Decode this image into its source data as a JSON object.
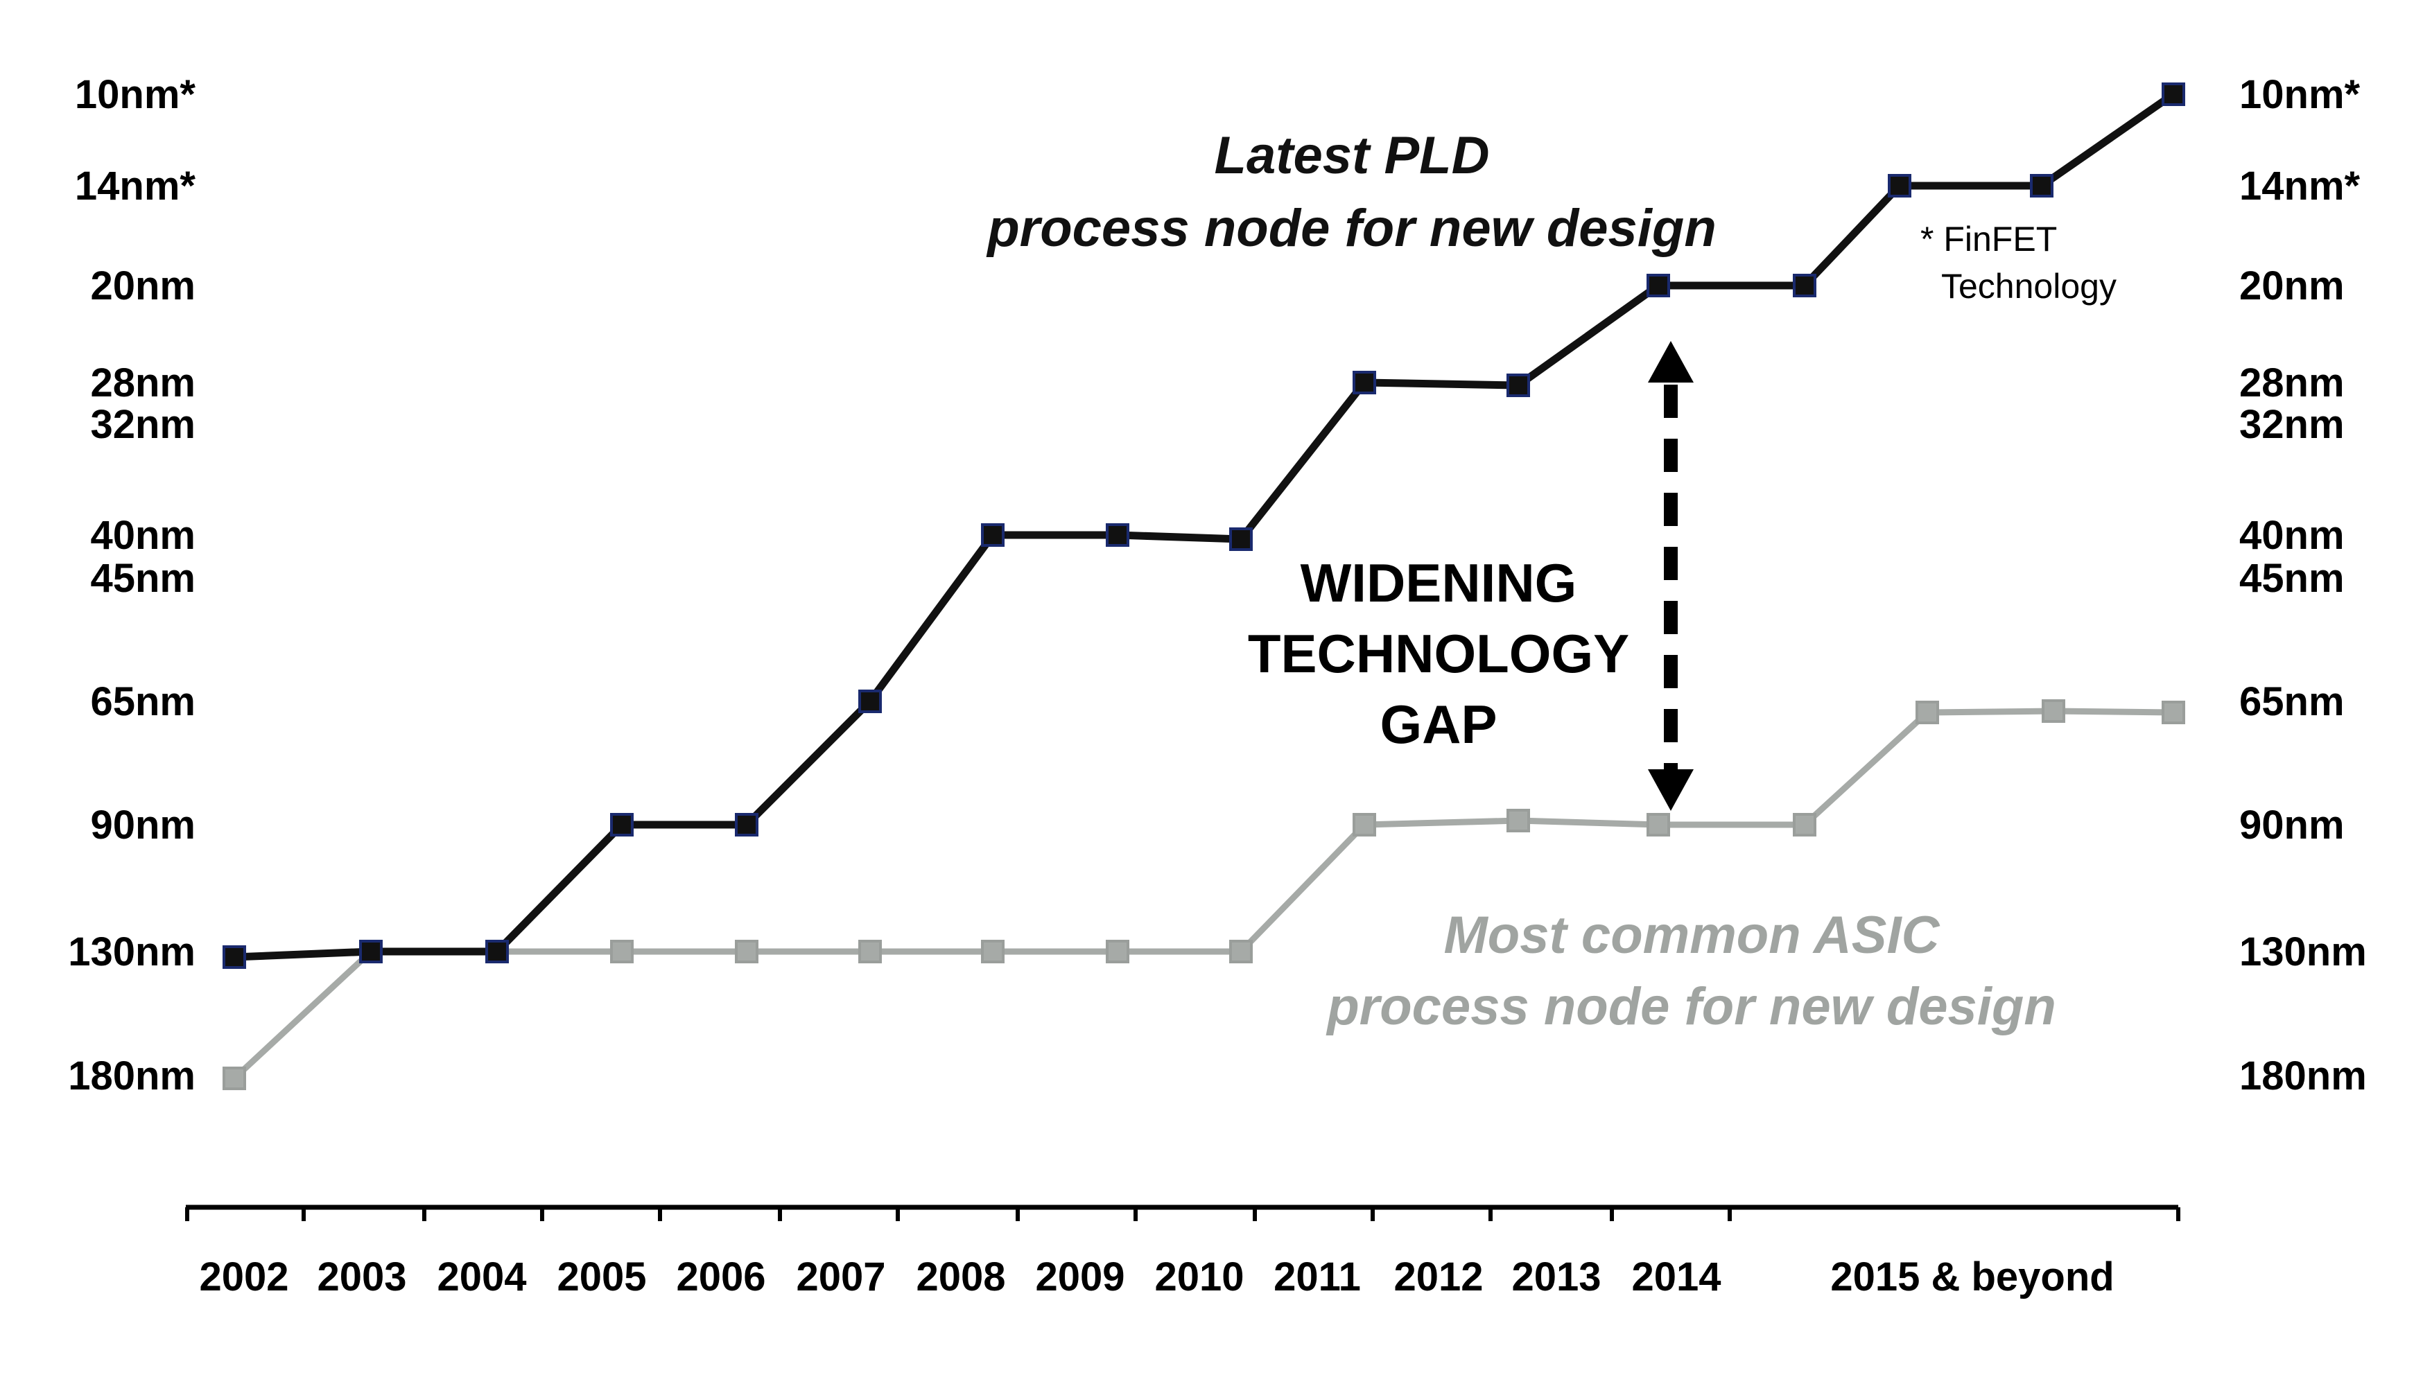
{
  "chart_data": {
    "type": "line",
    "title": "",
    "xlabel": "",
    "ylabel": "",
    "x_labels": [
      "2002",
      "2003",
      "2004",
      "2005",
      "2006",
      "2007",
      "2008",
      "2009",
      "2010",
      "2011",
      "2012",
      "2013",
      "2014",
      "2015 & beyond"
    ],
    "y_ticks": [
      "10nm*",
      "14nm*",
      "20nm",
      "28nm",
      "32nm",
      "40nm",
      "45nm",
      "65nm",
      "90nm",
      "130nm",
      "180nm"
    ],
    "series": [
      {
        "name": "Latest PLD process node for new design",
        "name_lines": [
          "Latest PLD",
          "process node for new design"
        ],
        "color": "#111111",
        "marker_edge": "#1a2a6e",
        "points": [
          {
            "x": "2002",
            "y": "130nm"
          },
          {
            "x": "2003",
            "y": "130nm"
          },
          {
            "x": "2004",
            "y": "130nm"
          },
          {
            "x": "2005",
            "y": "90nm"
          },
          {
            "x": "2006",
            "y": "90nm"
          },
          {
            "x": "2007",
            "y": "65nm"
          },
          {
            "x": "2008",
            "y": "40nm"
          },
          {
            "x": "2009",
            "y": "40nm"
          },
          {
            "x": "2010",
            "y": "40nm"
          },
          {
            "x": "2011",
            "y": "28nm"
          },
          {
            "x": "2012",
            "y": "28nm"
          },
          {
            "x": "2013",
            "y": "20nm"
          },
          {
            "x": "2014",
            "y": "20nm"
          },
          {
            "x": "2015 & beyond",
            "y": "14nm*"
          },
          {
            "x": "2015 & beyond",
            "y": "14nm*"
          },
          {
            "x": "2015 & beyond",
            "y": "10nm*"
          }
        ]
      },
      {
        "name": "Most common ASIC process node for new design",
        "name_lines": [
          "Most common ASIC",
          "process node for new design"
        ],
        "color": "#a6aaa7",
        "marker_edge": "#9a9e9b",
        "points": [
          {
            "x": "2002",
            "y": "180nm"
          },
          {
            "x": "2003",
            "y": "130nm"
          },
          {
            "x": "2004",
            "y": "130nm"
          },
          {
            "x": "2005",
            "y": "130nm"
          },
          {
            "x": "2006",
            "y": "130nm"
          },
          {
            "x": "2007",
            "y": "130nm"
          },
          {
            "x": "2008",
            "y": "130nm"
          },
          {
            "x": "2009",
            "y": "130nm"
          },
          {
            "x": "2010",
            "y": "130nm"
          },
          {
            "x": "2011",
            "y": "90nm"
          },
          {
            "x": "2012",
            "y": "90nm"
          },
          {
            "x": "2013",
            "y": "90nm"
          },
          {
            "x": "2014",
            "y": "90nm"
          },
          {
            "x": "2015 & beyond",
            "y": "65nm"
          },
          {
            "x": "2015 & beyond",
            "y": "65nm"
          },
          {
            "x": "2015 & beyond",
            "y": "65nm"
          }
        ]
      }
    ],
    "annotations": {
      "gap_label": [
        "WIDENING",
        "TECHNOLOGY",
        "GAP"
      ],
      "gap_arrow": {
        "from": {
          "x": "2014",
          "y": "20nm"
        },
        "to": {
          "x": "2014",
          "y": "90nm"
        }
      },
      "note": [
        "* FinFET",
        "Technology"
      ]
    },
    "grid": false,
    "legend": "none"
  }
}
